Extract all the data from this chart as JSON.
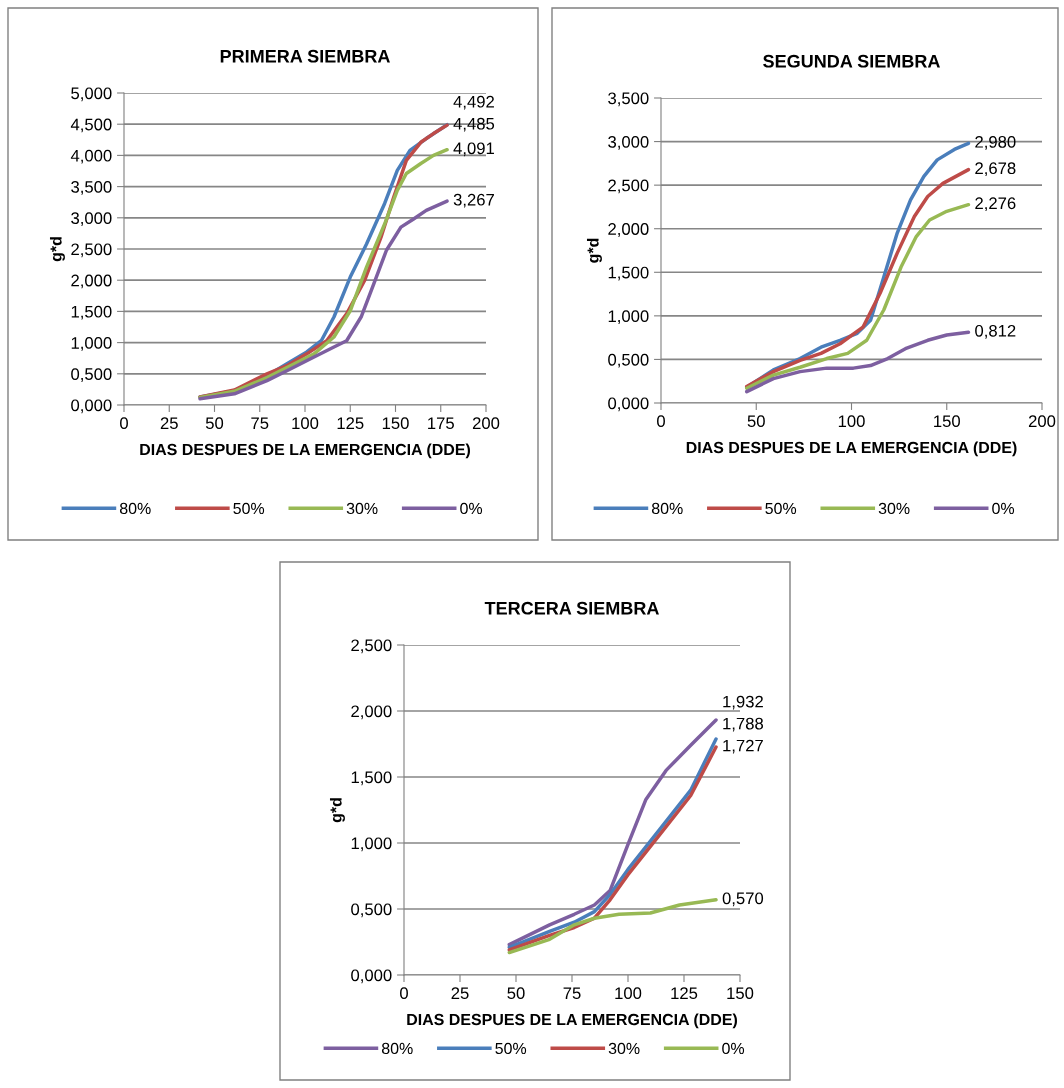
{
  "chart_data": [
    {
      "type": "line",
      "title": "PRIMERA SIEMBRA",
      "xlabel": "DIAS DESPUES DE LA EMERGENCIA (DDE)",
      "ylabel": "g*d",
      "xlim": [
        0,
        200
      ],
      "xticks": [
        0,
        25,
        50,
        75,
        100,
        125,
        150,
        175,
        200
      ],
      "ylim": [
        0,
        5
      ],
      "yticks": [
        {
          "value": 0,
          "label": "0,000"
        },
        {
          "value": 0.5,
          "label": "0,500"
        },
        {
          "value": 1,
          "label": "1,000"
        },
        {
          "value": 1.5,
          "label": "1,500"
        },
        {
          "value": 2,
          "label": "2,000"
        },
        {
          "value": 2.5,
          "label": "2,500"
        },
        {
          "value": 3,
          "label": "3,000"
        },
        {
          "value": 3.5,
          "label": "3,500"
        },
        {
          "value": 4,
          "label": "4,000"
        },
        {
          "value": 4.5,
          "label": "4,500"
        },
        {
          "value": 5,
          "label": "5,000"
        }
      ],
      "grid": "y",
      "legend": "bottom",
      "marker": "none",
      "line_style": "solid",
      "series": [
        {
          "name": "80%",
          "color": "#4a7ebb",
          "x": [
            42,
            61,
            79,
            90,
            101,
            109,
            116,
            125,
            134,
            144,
            151,
            158,
            167,
            178.5
          ],
          "values": [
            0.13,
            0.23,
            0.47,
            0.66,
            0.85,
            1.03,
            1.41,
            2.05,
            2.58,
            3.23,
            3.76,
            4.08,
            4.27,
            4.492
          ],
          "value_labels": [
            null,
            null,
            null,
            null,
            null,
            null,
            null,
            null,
            null,
            null,
            null,
            null,
            null,
            "4,492"
          ]
        },
        {
          "name": "50%",
          "color": "#be4b48",
          "x": [
            42,
            61,
            79,
            90,
            101,
            112,
            123,
            133,
            142,
            149,
            156,
            164,
            171,
            178.5
          ],
          "values": [
            0.13,
            0.24,
            0.5,
            0.63,
            0.82,
            1.03,
            1.46,
            2.0,
            2.69,
            3.33,
            3.92,
            4.21,
            4.35,
            4.485
          ],
          "value_labels": [
            null,
            null,
            null,
            null,
            null,
            null,
            null,
            null,
            null,
            null,
            null,
            null,
            null,
            "4,485"
          ]
        },
        {
          "name": "30%",
          "color": "#98b954",
          "x": [
            42,
            61,
            79,
            90,
            105,
            116,
            125,
            134,
            144,
            151,
            156,
            164,
            171,
            178.5
          ],
          "values": [
            0.12,
            0.22,
            0.44,
            0.6,
            0.82,
            1.09,
            1.51,
            2.21,
            2.9,
            3.44,
            3.71,
            3.87,
            4.0,
            4.091
          ],
          "value_labels": [
            null,
            null,
            null,
            null,
            null,
            null,
            null,
            null,
            null,
            null,
            null,
            null,
            null,
            "4,091"
          ]
        },
        {
          "name": "0%",
          "color": "#7d5fa0",
          "x": [
            42,
            61,
            79,
            90,
            105,
            116,
            123,
            131,
            138,
            145,
            153,
            160,
            167,
            178.5
          ],
          "values": [
            0.1,
            0.18,
            0.39,
            0.55,
            0.77,
            0.93,
            1.03,
            1.41,
            1.94,
            2.48,
            2.85,
            2.98,
            3.12,
            3.267
          ],
          "value_labels": [
            null,
            null,
            null,
            null,
            null,
            null,
            null,
            null,
            null,
            null,
            null,
            null,
            null,
            "3,267"
          ]
        }
      ]
    },
    {
      "type": "line",
      "title": "SEGUNDA SIEMBRA",
      "xlabel": "DIAS DESPUES DE LA EMERGENCIA (DDE)",
      "ylabel": "g*d",
      "xlim": [
        0,
        200
      ],
      "xticks": [
        0,
        50,
        100,
        150,
        200
      ],
      "ylim": [
        0,
        3.5
      ],
      "yticks": [
        {
          "value": 0,
          "label": "0,000"
        },
        {
          "value": 0.5,
          "label": "0,500"
        },
        {
          "value": 1,
          "label": "1,000"
        },
        {
          "value": 1.5,
          "label": "1,500"
        },
        {
          "value": 2,
          "label": "2,000"
        },
        {
          "value": 2.5,
          "label": "2,500"
        },
        {
          "value": 3,
          "label": "3,000"
        },
        {
          "value": 3.5,
          "label": "3,500"
        }
      ],
      "grid": "y",
      "legend": "bottom",
      "marker": "none",
      "line_style": "solid",
      "series": [
        {
          "name": "80%",
          "color": "#4a7ebb",
          "x": [
            45,
            59,
            73,
            84,
            94,
            103,
            110,
            117,
            124,
            131,
            138,
            145,
            154,
            161.4
          ],
          "values": [
            0.18,
            0.38,
            0.51,
            0.64,
            0.72,
            0.8,
            0.95,
            1.45,
            1.95,
            2.33,
            2.6,
            2.79,
            2.91,
            2.98
          ],
          "value_labels": [
            null,
            null,
            null,
            null,
            null,
            null,
            null,
            null,
            null,
            null,
            null,
            null,
            null,
            "2,980"
          ]
        },
        {
          "name": "50%",
          "color": "#be4b48",
          "x": [
            45,
            59,
            73,
            84,
            94,
            106,
            115,
            124,
            133,
            140,
            148,
            161.4
          ],
          "values": [
            0.19,
            0.36,
            0.49,
            0.57,
            0.68,
            0.87,
            1.26,
            1.72,
            2.14,
            2.37,
            2.52,
            2.678
          ],
          "value_labels": [
            null,
            null,
            null,
            null,
            null,
            null,
            null,
            null,
            null,
            null,
            null,
            "2,678"
          ]
        },
        {
          "name": "30%",
          "color": "#98b954",
          "x": [
            45,
            59,
            73,
            87,
            98,
            108,
            117,
            126,
            134,
            141,
            150,
            161.4
          ],
          "values": [
            0.17,
            0.32,
            0.41,
            0.51,
            0.57,
            0.72,
            1.07,
            1.56,
            1.91,
            2.1,
            2.2,
            2.276
          ],
          "value_labels": [
            null,
            null,
            null,
            null,
            null,
            null,
            null,
            null,
            null,
            null,
            null,
            "2,276"
          ]
        },
        {
          "name": "0%",
          "color": "#7d5fa0",
          "x": [
            45,
            59,
            73,
            87,
            101,
            110,
            119,
            129,
            140,
            150,
            161.4
          ],
          "values": [
            0.13,
            0.28,
            0.36,
            0.4,
            0.4,
            0.43,
            0.51,
            0.63,
            0.72,
            0.78,
            0.812
          ],
          "value_labels": [
            null,
            null,
            null,
            null,
            null,
            null,
            null,
            null,
            null,
            null,
            "0,812"
          ]
        }
      ]
    },
    {
      "type": "line",
      "title": "TERCERA SIEMBRA",
      "xlabel": "DIAS DESPUES DE LA EMERGENCIA (DDE)",
      "ylabel": "g*d",
      "xlim": [
        0,
        150
      ],
      "xticks": [
        0,
        25,
        50,
        75,
        100,
        125,
        150
      ],
      "ylim": [
        0,
        2.5
      ],
      "yticks": [
        {
          "value": 0,
          "label": "0,000"
        },
        {
          "value": 0.5,
          "label": "0,500"
        },
        {
          "value": 1,
          "label": "1,000"
        },
        {
          "value": 1.5,
          "label": "1,500"
        },
        {
          "value": 2,
          "label": "2,000"
        },
        {
          "value": 2.5,
          "label": "2,500"
        }
      ],
      "grid": "y",
      "legend": "bottom",
      "marker": "none",
      "line_style": "solid",
      "series": [
        {
          "name": "80%",
          "color": "#7d5fa0",
          "x": [
            47,
            65,
            76,
            85,
            92,
            100,
            108,
            117,
            128,
            139.3
          ],
          "values": [
            0.23,
            0.38,
            0.46,
            0.53,
            0.64,
            0.99,
            1.33,
            1.55,
            1.74,
            1.932
          ],
          "value_labels": [
            null,
            null,
            null,
            null,
            null,
            null,
            null,
            null,
            null,
            "1,932"
          ]
        },
        {
          "name": "50%",
          "color": "#4a7ebb",
          "x": [
            47,
            65,
            76,
            85,
            92,
            100,
            114,
            128,
            139.3
          ],
          "values": [
            0.21,
            0.33,
            0.4,
            0.48,
            0.61,
            0.8,
            1.1,
            1.4,
            1.788
          ],
          "value_labels": [
            null,
            null,
            null,
            null,
            null,
            null,
            null,
            null,
            "1,788"
          ]
        },
        {
          "name": "30%",
          "color": "#be4b48",
          "x": [
            47,
            65,
            76,
            85,
            92,
            100,
            114,
            128,
            139.3
          ],
          "values": [
            0.19,
            0.3,
            0.36,
            0.43,
            0.57,
            0.76,
            1.06,
            1.36,
            1.727
          ],
          "value_labels": [
            null,
            null,
            null,
            null,
            null,
            null,
            null,
            null,
            "1,727"
          ]
        },
        {
          "name": "0%",
          "color": "#98b954",
          "x": [
            47,
            65,
            76,
            85,
            96,
            110,
            123,
            139.3
          ],
          "values": [
            0.17,
            0.27,
            0.38,
            0.43,
            0.46,
            0.47,
            0.53,
            0.57
          ],
          "value_labels": [
            null,
            null,
            null,
            null,
            null,
            null,
            null,
            "0,570"
          ]
        }
      ]
    }
  ]
}
